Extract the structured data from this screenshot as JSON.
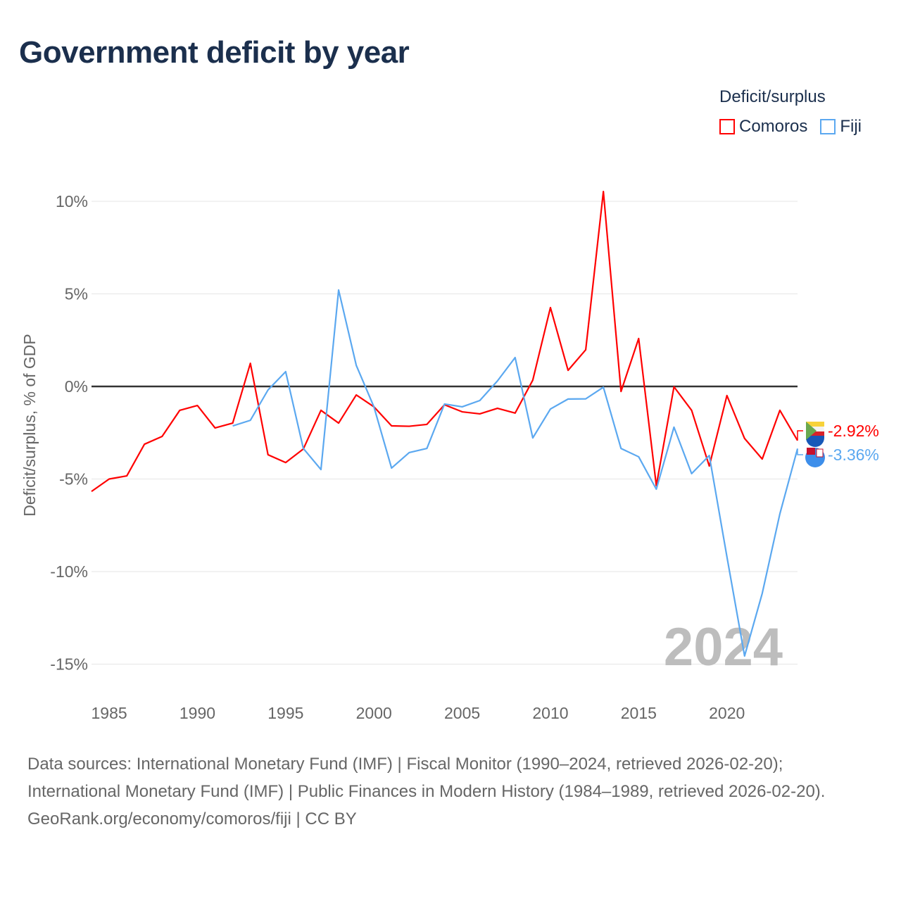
{
  "title": "Government deficit by year",
  "legend": {
    "title": "Deficit/surplus",
    "items": [
      {
        "label": "Comoros",
        "color": "#ff0000"
      },
      {
        "label": "Fiji",
        "color": "#5ba8f0"
      }
    ]
  },
  "year_watermark": "2024",
  "footer": {
    "sources": "Data sources: International Monetary Fund (IMF) | Fiscal Monitor (1990–2024, retrieved 2026-02-20); International Monetary Fund (IMF) | Public Finances in Modern History (1984–1989, retrieved 2026-02-20).",
    "credit": "GeoRank.org/economy/comoros/fiji | CC BY"
  },
  "chart_data": {
    "type": "line",
    "title": "Government deficit by year",
    "xlabel": "",
    "ylabel": "Deficit/surplus, % of GDP",
    "xlim": [
      1984,
      2024
    ],
    "ylim": [
      -15,
      10
    ],
    "xticks": [
      1985,
      1990,
      1995,
      2000,
      2005,
      2010,
      2015,
      2020
    ],
    "yticks": [
      10,
      5,
      0,
      -5,
      -10,
      -15
    ],
    "ytick_labels": [
      "10%",
      "5%",
      "0%",
      "-5%",
      "-10%",
      "-15%"
    ],
    "grid": true,
    "legend_position": "top-right",
    "series": [
      {
        "name": "Comoros",
        "color": "#ff0000",
        "end_label": "-2.92%",
        "start": 1984,
        "values": [
          -5.67,
          -5.0,
          -4.83,
          -3.12,
          -2.7,
          -1.29,
          -1.03,
          -2.24,
          -1.98,
          1.25,
          -3.69,
          -4.11,
          -3.38,
          -1.29,
          -1.98,
          -0.46,
          -1.1,
          -2.13,
          -2.15,
          -2.05,
          -0.99,
          -1.37,
          -1.48,
          -1.18,
          -1.44,
          0.34,
          4.26,
          0.87,
          1.98,
          10.53,
          -0.27,
          2.59,
          -5.36,
          -0.02,
          -1.29,
          -4.3,
          -0.49,
          -2.81,
          -3.92,
          -1.29,
          -2.92
        ]
      },
      {
        "name": "Fiji",
        "color": "#5ba8f0",
        "end_label": "-3.36%",
        "start": 1992,
        "values": [
          -2.13,
          -1.83,
          -0.19,
          0.8,
          -3.35,
          -4.49,
          5.21,
          1.14,
          -1.1,
          -4.41,
          -3.57,
          -3.35,
          -0.95,
          -1.1,
          -0.76,
          0.3,
          1.56,
          -2.78,
          -1.22,
          -0.68,
          -0.67,
          -0.04,
          -3.35,
          -3.8,
          -5.55,
          -2.2,
          -4.71,
          -3.73,
          -9.2,
          -14.56,
          -11.18,
          -6.88,
          -3.36
        ]
      }
    ]
  }
}
